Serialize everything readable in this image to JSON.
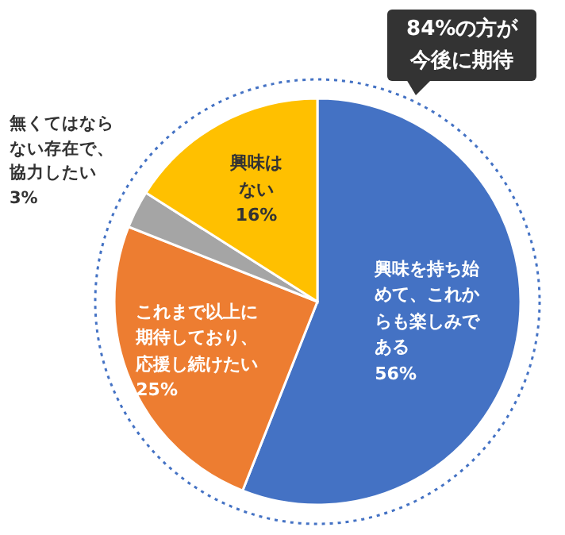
{
  "chart_data": {
    "type": "pie",
    "categories": [
      "興味を持ち始めて、これからも楽しみである",
      "これまで以上に期待しており、応援し続けたい",
      "無くてはならない存在で、協力したい",
      "興味はない"
    ],
    "values": [
      56,
      25,
      3,
      16
    ],
    "value_labels": [
      "56%",
      "25%",
      "3%",
      "16%"
    ],
    "colors": [
      "#4472c4",
      "#ed7d31",
      "#a5a5a5",
      "#ffc000"
    ],
    "annotations": [
      "84%の方が今後に期待"
    ]
  }
}
